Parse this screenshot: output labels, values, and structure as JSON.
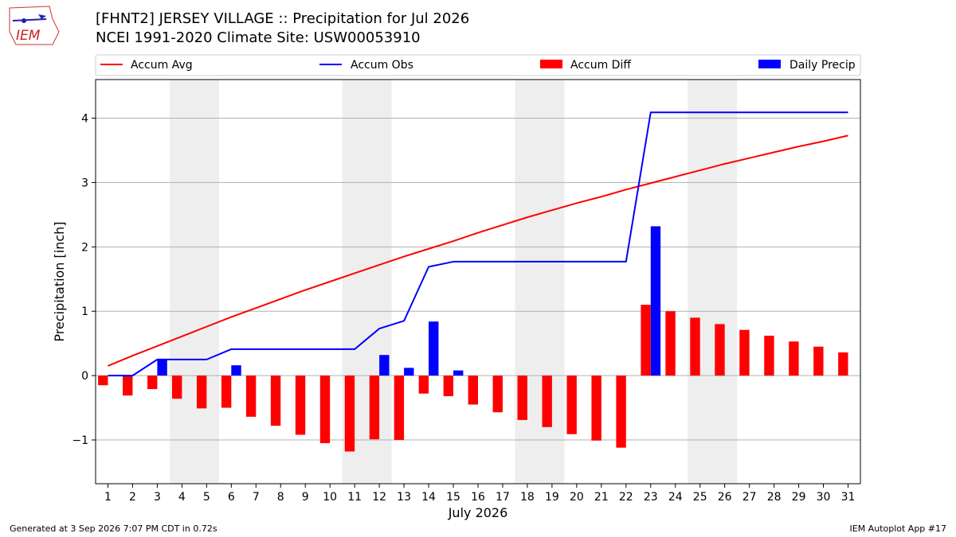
{
  "header": {
    "logo_text": "IEM",
    "title": "[FHNT2] JERSEY VILLAGE :: Precipitation for Jul 2026",
    "subtitle": "NCEI 1991-2020 Climate Site: USW00053910"
  },
  "footer": {
    "generated": "Generated at 3 Sep 2026 7:07 PM CDT in 0.72s",
    "app": "IEM Autoplot App #17"
  },
  "colors": {
    "avg": "#ff0000",
    "obs": "#0000ff",
    "diff": "#ff0000",
    "daily": "#0000ff",
    "weekend_shade": "#eeeeee",
    "grid": "#b0b0b0"
  },
  "chart_data": {
    "type": "bar",
    "xlabel": "July 2026",
    "ylabel": "Precipitation [inch]",
    "xlim": [
      0.5,
      31.5
    ],
    "ylim": [
      -1.68,
      4.6
    ],
    "yticks": [
      -1,
      0,
      1,
      2,
      3,
      4
    ],
    "ytick_labels": [
      "−1",
      "0",
      "1",
      "2",
      "3",
      "4"
    ],
    "grid": "horizontal",
    "legend_placement": "top",
    "categories": [
      1,
      2,
      3,
      4,
      5,
      6,
      7,
      8,
      9,
      10,
      11,
      12,
      13,
      14,
      15,
      16,
      17,
      18,
      19,
      20,
      21,
      22,
      23,
      24,
      25,
      26,
      27,
      28,
      29,
      30,
      31
    ],
    "shaded_days": [
      [
        4,
        5
      ],
      [
        11,
        12
      ],
      [
        18,
        19
      ],
      [
        25,
        26
      ]
    ],
    "series": [
      {
        "name": "Accum Avg",
        "kind": "line",
        "values": [
          0.15,
          0.31,
          0.46,
          0.61,
          0.76,
          0.91,
          1.05,
          1.19,
          1.33,
          1.46,
          1.59,
          1.72,
          1.85,
          1.97,
          2.09,
          2.22,
          2.34,
          2.46,
          2.57,
          2.68,
          2.78,
          2.89,
          2.99,
          3.09,
          3.19,
          3.29,
          3.38,
          3.47,
          3.56,
          3.64,
          3.73
        ]
      },
      {
        "name": "Accum Obs",
        "kind": "line",
        "values": [
          0.0,
          0.0,
          0.25,
          0.25,
          0.25,
          0.41,
          0.41,
          0.41,
          0.41,
          0.41,
          0.41,
          0.73,
          0.85,
          1.69,
          1.77,
          1.77,
          1.77,
          1.77,
          1.77,
          1.77,
          1.77,
          1.77,
          4.09,
          4.09,
          4.09,
          4.09,
          4.09,
          4.09,
          4.09,
          4.09,
          4.09
        ]
      },
      {
        "name": "Accum Diff",
        "kind": "bar",
        "values": [
          -0.15,
          -0.31,
          -0.21,
          -0.36,
          -0.51,
          -0.5,
          -0.64,
          -0.78,
          -0.92,
          -1.05,
          -1.18,
          -0.99,
          -1.0,
          -0.28,
          -0.32,
          -0.45,
          -0.57,
          -0.69,
          -0.8,
          -0.91,
          -1.01,
          -1.12,
          1.1,
          1.0,
          0.9,
          0.8,
          0.71,
          0.62,
          0.53,
          0.45,
          0.36
        ]
      },
      {
        "name": "Daily Precip",
        "kind": "bar",
        "values": [
          0,
          0,
          0.25,
          0,
          0,
          0.16,
          0,
          0,
          0,
          0,
          0,
          0.32,
          0.12,
          0.84,
          0.08,
          0,
          0,
          0,
          0,
          0,
          0,
          0,
          2.32,
          0,
          0,
          0,
          0,
          0,
          0,
          0,
          0
        ]
      }
    ]
  }
}
